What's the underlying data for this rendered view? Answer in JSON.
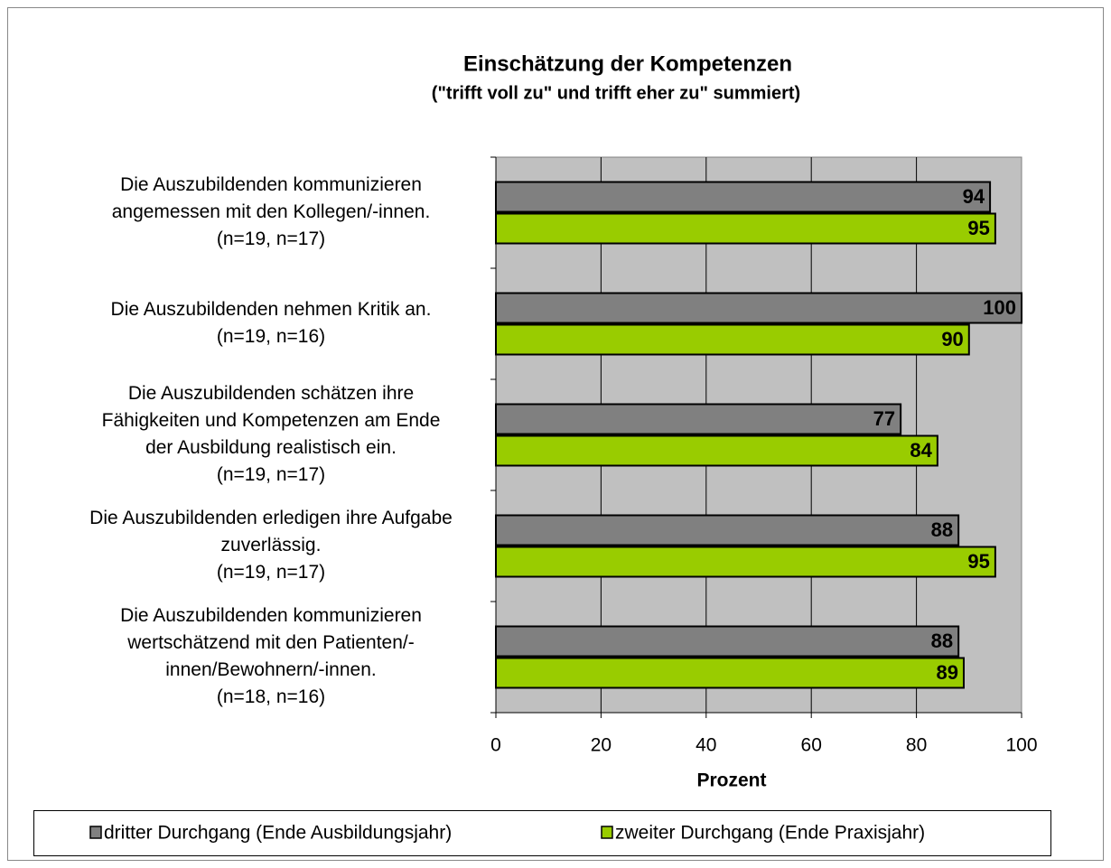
{
  "chart_data": {
    "type": "barh",
    "title": "Einschätzung der Kompetenzen",
    "subtitle": "(\"trifft voll zu\" und trifft eher zu\" summiert)",
    "categories": [
      [
        "Die Auszubildenden kommunizieren",
        "angemessen mit den Kollegen/-innen.",
        "(n=19, n=17)"
      ],
      [
        "Die Auszubildenden nehmen Kritik an.",
        "(n=19, n=16)"
      ],
      [
        "Die Auszubildenden schätzen ihre",
        "Fähigkeiten und Kompetenzen am Ende",
        "der Ausbildung realistisch ein.",
        "(n=19, n=17)"
      ],
      [
        "Die Auszubildenden erledigen ihre Aufgabe",
        "zuverlässig.",
        "(n=19, n=17)"
      ],
      [
        "Die Auszubildenden kommunizieren",
        "wertschätzend mit den Patienten/-",
        "innen/Bewohnern/-innen.",
        "(n=18, n=16)"
      ]
    ],
    "series": [
      {
        "name": "dritter Durchgang (Ende Ausbildungsjahr)",
        "color": "#808080",
        "values": [
          94,
          100,
          77,
          88,
          88
        ]
      },
      {
        "name": "zweiter Durchgang (Ende Praxisjahr)",
        "color": "#99cc00",
        "values": [
          95,
          90,
          84,
          95,
          89
        ]
      }
    ],
    "xlabel": "Prozent",
    "xlim": [
      0,
      100
    ],
    "xticks": [
      0,
      20,
      40,
      60,
      80,
      100
    ],
    "grid": true,
    "legend": "bottom"
  }
}
